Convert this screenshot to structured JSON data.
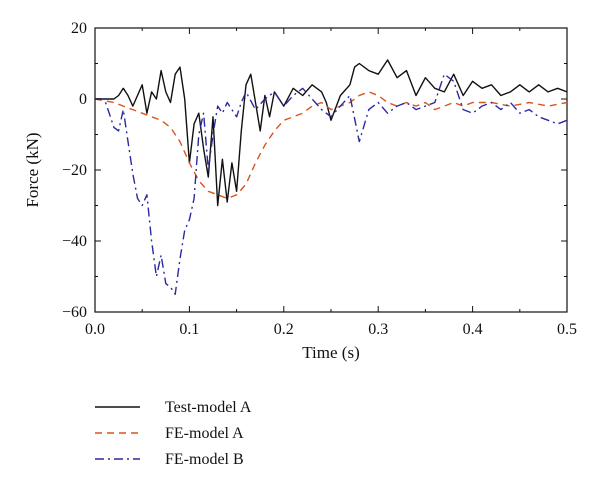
{
  "chart_data": {
    "type": "line",
    "xlabel": "Time (s)",
    "ylabel": "Force (kN)",
    "xlim": [
      0.0,
      0.5
    ],
    "ylim": [
      -60,
      20
    ],
    "xticks": [
      0.0,
      0.1,
      0.2,
      0.3,
      0.4,
      0.5
    ],
    "xtick_labels": [
      "0.0",
      "0.1",
      "0.2",
      "0.3",
      "0.4",
      "0.5"
    ],
    "yticks": [
      20,
      0,
      -20,
      -40,
      -60
    ],
    "ytick_labels": [
      "20",
      "0",
      "−20",
      "−40",
      "−60"
    ],
    "grid": false,
    "legend_position": "below",
    "series": [
      {
        "name": "Test-model A",
        "color": "#111111",
        "style": "solid",
        "x": [
          0.0,
          0.02,
          0.025,
          0.03,
          0.035,
          0.04,
          0.045,
          0.05,
          0.055,
          0.06,
          0.065,
          0.07,
          0.075,
          0.08,
          0.085,
          0.09,
          0.095,
          0.1,
          0.105,
          0.11,
          0.115,
          0.12,
          0.125,
          0.13,
          0.135,
          0.14,
          0.145,
          0.15,
          0.155,
          0.16,
          0.165,
          0.17,
          0.175,
          0.18,
          0.185,
          0.19,
          0.2,
          0.21,
          0.22,
          0.23,
          0.24,
          0.245,
          0.25,
          0.26,
          0.27,
          0.275,
          0.28,
          0.29,
          0.3,
          0.305,
          0.31,
          0.32,
          0.33,
          0.34,
          0.35,
          0.36,
          0.37,
          0.38,
          0.39,
          0.4,
          0.41,
          0.42,
          0.43,
          0.44,
          0.45,
          0.46,
          0.47,
          0.48,
          0.49,
          0.5
        ],
        "values": [
          0,
          0,
          1,
          3,
          1,
          -2,
          1,
          4,
          -4,
          2,
          0,
          8,
          2,
          -1,
          7,
          9,
          0,
          -18,
          -7,
          -4,
          -14,
          -22,
          -5,
          -30,
          -17,
          -29,
          -18,
          -26,
          -9,
          4,
          7,
          -1,
          -9,
          1,
          -5,
          2,
          -2,
          3,
          1,
          4,
          2,
          -1,
          -6,
          1,
          4,
          9,
          10,
          8,
          7,
          9,
          11,
          6,
          8,
          1,
          6,
          3,
          2,
          7,
          1,
          5,
          3,
          4,
          1,
          2,
          4,
          2,
          4,
          2,
          3,
          2
        ]
      },
      {
        "name": "FE-model A",
        "color": "#d9541e",
        "style": "dashed",
        "x": [
          0.0,
          0.02,
          0.03,
          0.04,
          0.05,
          0.06,
          0.07,
          0.08,
          0.09,
          0.1,
          0.11,
          0.12,
          0.13,
          0.14,
          0.15,
          0.16,
          0.17,
          0.18,
          0.19,
          0.2,
          0.21,
          0.22,
          0.23,
          0.24,
          0.25,
          0.26,
          0.27,
          0.28,
          0.29,
          0.3,
          0.31,
          0.32,
          0.33,
          0.34,
          0.35,
          0.36,
          0.37,
          0.38,
          0.39,
          0.4,
          0.42,
          0.44,
          0.46,
          0.48,
          0.5
        ],
        "values": [
          0,
          -1,
          -2,
          -3,
          -4,
          -5,
          -6,
          -8,
          -12,
          -18,
          -23,
          -26,
          -27,
          -28,
          -27,
          -24,
          -18,
          -13,
          -9,
          -6,
          -5,
          -4,
          -2,
          -1,
          -3,
          -2,
          -1,
          1,
          2,
          1,
          -1,
          -2,
          -1,
          -2,
          -1,
          -3,
          -2,
          -1,
          -2,
          -1,
          -1,
          -2,
          -1,
          -2,
          -1
        ]
      },
      {
        "name": "FE-model B",
        "color": "#2a2aa0",
        "style": "dashdot",
        "x": [
          0.0,
          0.01,
          0.015,
          0.02,
          0.025,
          0.03,
          0.035,
          0.04,
          0.045,
          0.05,
          0.055,
          0.06,
          0.065,
          0.07,
          0.075,
          0.08,
          0.085,
          0.09,
          0.095,
          0.1,
          0.105,
          0.11,
          0.115,
          0.12,
          0.125,
          0.13,
          0.135,
          0.14,
          0.145,
          0.15,
          0.155,
          0.16,
          0.17,
          0.18,
          0.19,
          0.2,
          0.21,
          0.22,
          0.23,
          0.24,
          0.25,
          0.26,
          0.27,
          0.28,
          0.29,
          0.3,
          0.31,
          0.32,
          0.33,
          0.34,
          0.35,
          0.36,
          0.37,
          0.38,
          0.39,
          0.4,
          0.41,
          0.42,
          0.43,
          0.44,
          0.45,
          0.46,
          0.47,
          0.48,
          0.49,
          0.5
        ],
        "values": [
          0,
          0,
          -4,
          -8,
          -9,
          -3,
          -12,
          -21,
          -28,
          -30,
          -27,
          -40,
          -50,
          -44,
          -52,
          -53,
          -55,
          -45,
          -37,
          -34,
          -28,
          -10,
          -4,
          -20,
          -10,
          -2,
          -4,
          -1,
          -3,
          -5,
          -1,
          2,
          -3,
          0,
          2,
          -2,
          1,
          3,
          0,
          -3,
          -5,
          -2,
          1,
          -12,
          -3,
          -1,
          -4,
          -2,
          -1,
          -3,
          -2,
          -1,
          7,
          5,
          -3,
          -4,
          -2,
          -1,
          -3,
          -1,
          -4,
          -3,
          -5,
          -6,
          -7,
          -6
        ]
      }
    ]
  }
}
